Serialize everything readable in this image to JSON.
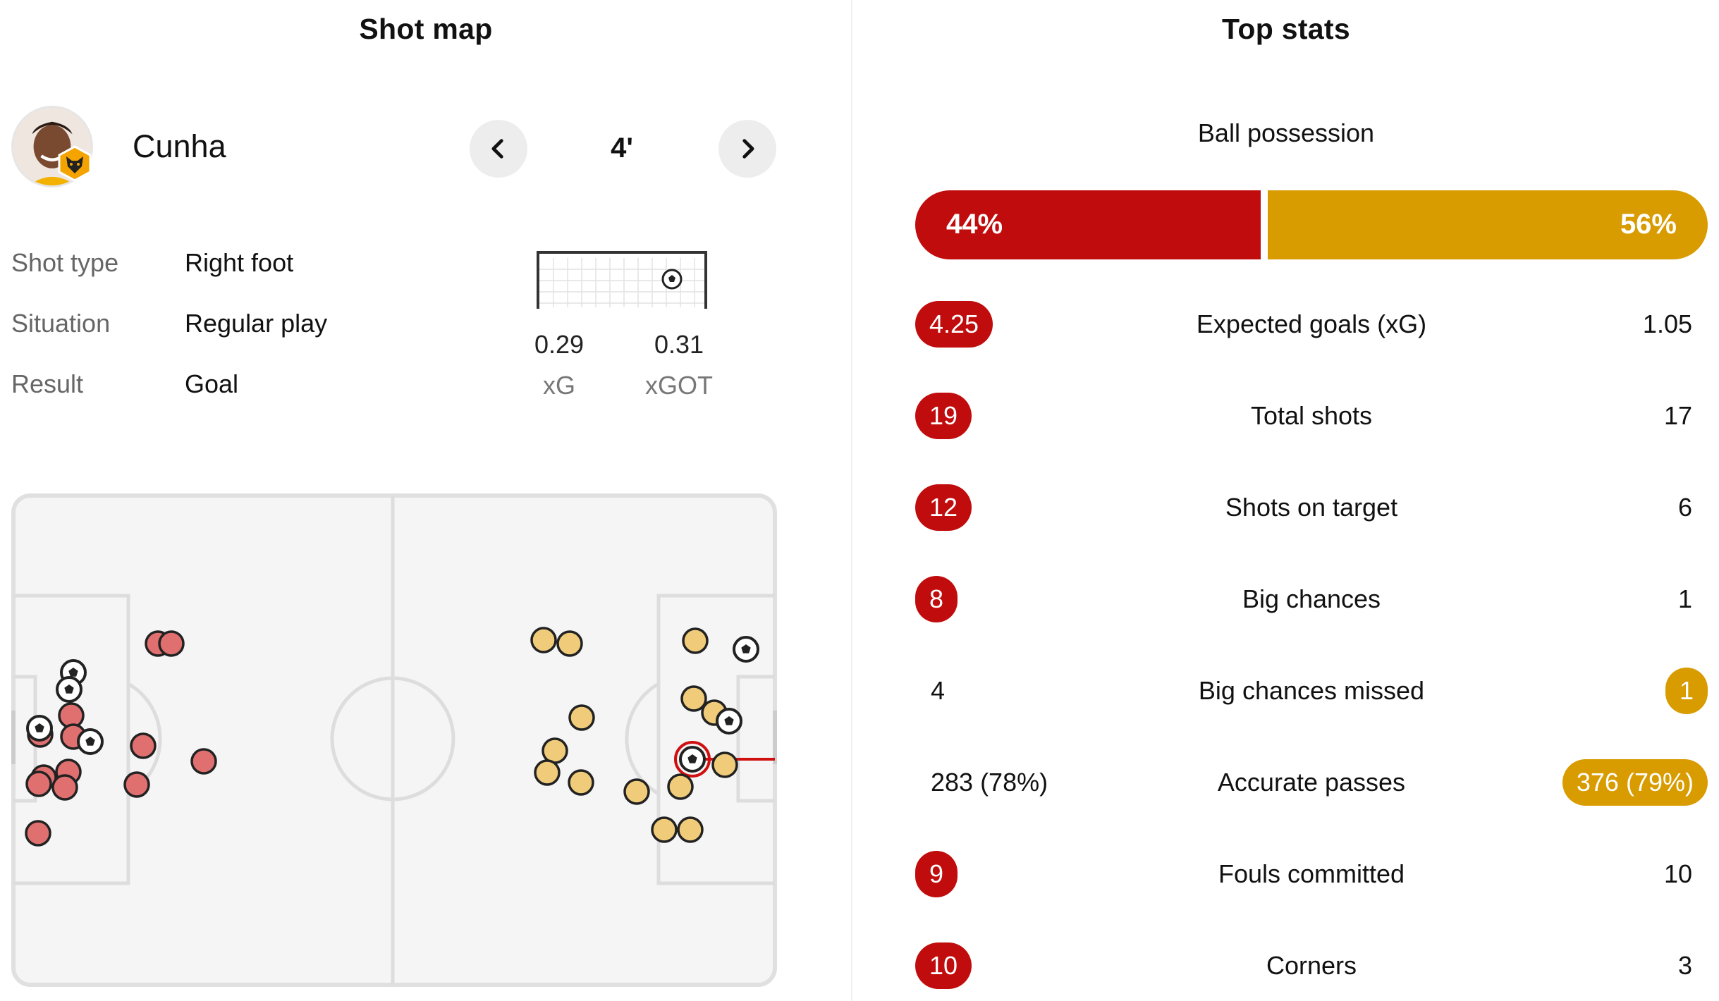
{
  "shot_map": {
    "title": "Shot map",
    "player": {
      "name": "Cunha"
    },
    "selected_shot": {
      "minute": "4'",
      "details": [
        {
          "label": "Shot type",
          "value": "Right foot"
        },
        {
          "label": "Situation",
          "value": "Regular play"
        },
        {
          "label": "Result",
          "value": "Goal"
        }
      ],
      "xg": {
        "value": "0.29",
        "label": "xG"
      },
      "xgot": {
        "value": "0.31",
        "label": "xGOT"
      }
    },
    "colors": {
      "home": "#e07070",
      "away": "#f0cc7a",
      "highlight": "#d01010"
    },
    "icons": {
      "prev": "chevron-left-icon",
      "next": "chevron-right-icon",
      "goal": "soccer-ball-icon",
      "badge": "wolf-badge-icon"
    }
  },
  "top_stats": {
    "title": "Top stats",
    "possession": {
      "label": "Ball possession",
      "home": "44%",
      "away": "56%",
      "home_fraction": 0.44
    },
    "colors": {
      "home": "#c00c0c",
      "away": "#d89b00"
    },
    "rows": [
      {
        "label": "Expected goals (xG)",
        "home": "4.25",
        "away": "1.05",
        "highlight": "home"
      },
      {
        "label": "Total shots",
        "home": "19",
        "away": "17",
        "highlight": "home"
      },
      {
        "label": "Shots on target",
        "home": "12",
        "away": "6",
        "highlight": "home"
      },
      {
        "label": "Big chances",
        "home": "8",
        "away": "1",
        "highlight": "home"
      },
      {
        "label": "Big chances missed",
        "home": "4",
        "away": "1",
        "highlight": "away"
      },
      {
        "label": "Accurate passes",
        "home": "283 (78%)",
        "away": "376 (79%)",
        "highlight": "away"
      },
      {
        "label": "Fouls committed",
        "home": "9",
        "away": "10",
        "highlight": "home"
      },
      {
        "label": "Corners",
        "home": "10",
        "away": "3",
        "highlight": "home"
      }
    ]
  }
}
